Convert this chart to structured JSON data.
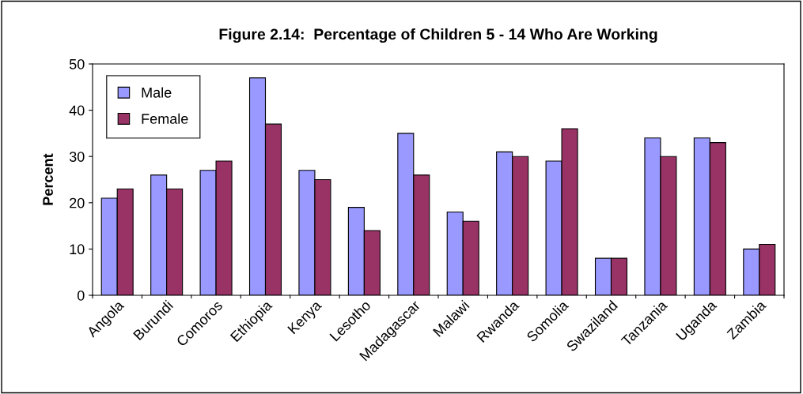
{
  "chart_data": {
    "type": "bar",
    "title": "Figure 2.14:  Percentage of Children 5 - 14 Who Are Working",
    "ylabel": "Percent",
    "categories": [
      "Angola",
      "Burundi",
      "Comoros",
      "Ethiopia",
      "Kenya",
      "Lesotho",
      "Madagascar",
      "Malawi",
      "Rwanda",
      "Somolia",
      "Swaziland",
      "Tanzania",
      "Uganda",
      "Zambia"
    ],
    "series": [
      {
        "name": "Male",
        "color": "#9999ff",
        "values": [
          21,
          26,
          27,
          47,
          27,
          19,
          35,
          18,
          31,
          29,
          8,
          34,
          34,
          10
        ]
      },
      {
        "name": "Female",
        "color": "#993366",
        "values": [
          23,
          23,
          29,
          37,
          25,
          14,
          26,
          16,
          30,
          36,
          8,
          30,
          33,
          11
        ]
      }
    ],
    "ylim": [
      0,
      50
    ],
    "yticks": [
      0,
      10,
      20,
      30,
      40,
      50
    ],
    "grid": false,
    "legend": "top left"
  }
}
